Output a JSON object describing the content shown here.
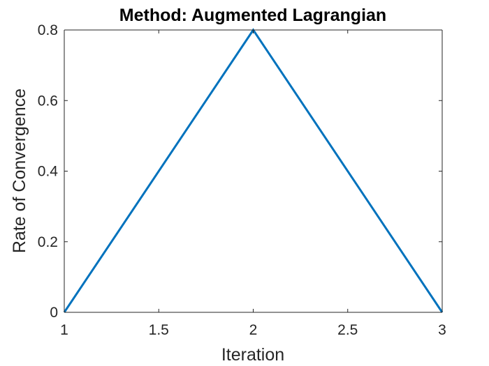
{
  "chart_data": {
    "type": "line",
    "title": "Method: Augmented Lagrangian",
    "xlabel": "Iteration",
    "ylabel": "Rate of Convergence",
    "xlim": [
      1,
      3
    ],
    "ylim": [
      0,
      0.8
    ],
    "xticks": [
      "1",
      "1.5",
      "2",
      "2.5",
      "3"
    ],
    "yticks": [
      "0",
      "0.2",
      "0.4",
      "0.6",
      "0.8"
    ],
    "grid": false,
    "legend": "none",
    "series": [
      {
        "x": [
          1,
          2,
          3
        ],
        "y": [
          0,
          0.8,
          0
        ],
        "color": "#0072BD"
      }
    ]
  }
}
